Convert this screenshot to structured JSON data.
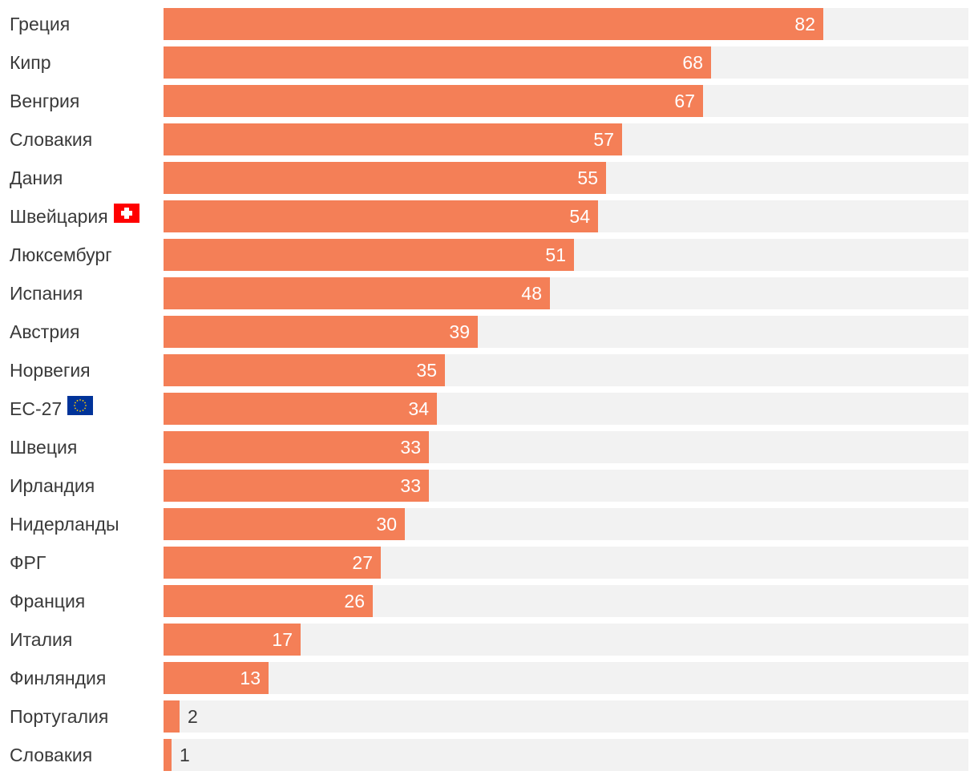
{
  "chart_data": {
    "type": "bar",
    "orientation": "horizontal",
    "categories": [
      "Греция",
      "Кипр",
      "Венгрия",
      "Словакия",
      "Дания",
      "Швейцария",
      "Люксембург",
      "Испания",
      "Австрия",
      "Норвегия",
      "ЕС-27",
      "Швеция",
      "Ирландия",
      "Нидерланды",
      "ФРГ",
      "Франция",
      "Италия",
      "Финляндия",
      "Португалия",
      "Словакия"
    ],
    "values": [
      82,
      68,
      67,
      57,
      55,
      54,
      51,
      48,
      39,
      35,
      34,
      33,
      33,
      30,
      27,
      26,
      17,
      13,
      2,
      1
    ],
    "flags": {
      "Швейцария": "swiss-flag-icon",
      "ЕС-27": "eu-flag-icon"
    },
    "xlim": [
      0,
      100
    ],
    "grid": false,
    "colors": {
      "bar": "#f47f57",
      "track": "#f2f2f2",
      "label": "#3a3a3a",
      "value_inside": "#ffffff"
    }
  }
}
